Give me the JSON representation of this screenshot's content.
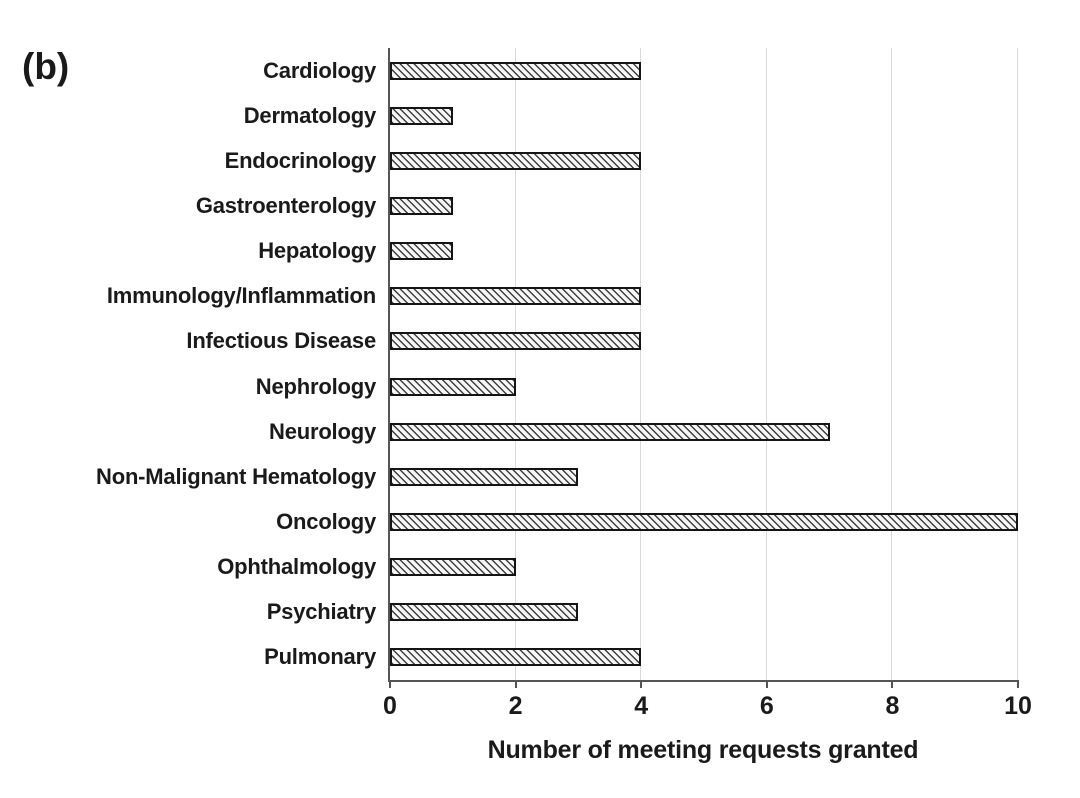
{
  "panel_label": "(b)",
  "chart_data": {
    "type": "bar",
    "orientation": "horizontal",
    "title": "",
    "xlabel": "Number of meeting requests granted",
    "ylabel": "",
    "categories": [
      "Cardiology",
      "Dermatology",
      "Endocrinology",
      "Gastroenterology",
      "Hepatology",
      "Immunology/Inflammation",
      "Infectious Disease",
      "Nephrology",
      "Neurology",
      "Non-Malignant Hematology",
      "Oncology",
      "Ophthalmology",
      "Psychiatry",
      "Pulmonary"
    ],
    "values": [
      4,
      1,
      4,
      1,
      1,
      4,
      4,
      2,
      7,
      3,
      10,
      2,
      3,
      4
    ],
    "x_ticks": [
      0,
      2,
      4,
      6,
      8,
      10
    ],
    "xlim": [
      0,
      10
    ],
    "grid": "vertical-gridlines-on",
    "legend": "none",
    "bar_style": "diagonal-hatch",
    "colors": {
      "bar_hatch": "#3f3f3f",
      "bar_fill": "#f6f6f6",
      "bar_border": "#141414",
      "gridline": "#d9d9d9",
      "axis": "#555555",
      "text": "#1a1a1a"
    }
  }
}
